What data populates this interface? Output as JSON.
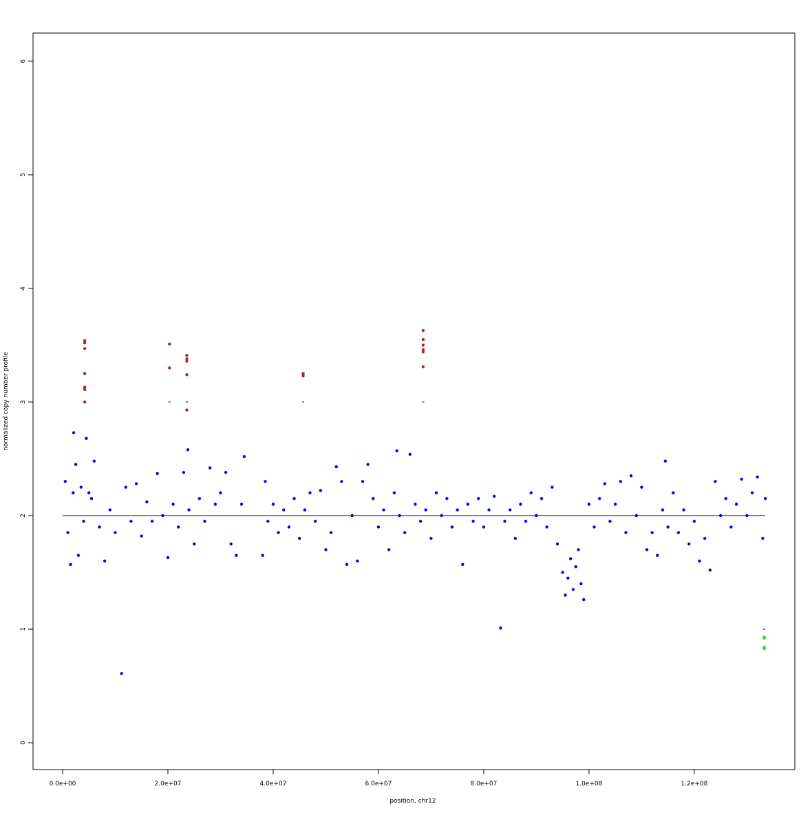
{
  "chart_data": {
    "type": "scatter",
    "x_label": "position, chr12",
    "y_label": "normalized copy number profile",
    "xlim": [
      -5620000.0,
      139100000.0
    ],
    "ylim": [
      -0.236,
      6.248
    ],
    "xticks": [
      {
        "value": 0,
        "label": "0.0e+00"
      },
      {
        "value": 20000000.0,
        "label": "2.0e+07"
      },
      {
        "value": 40000000.0,
        "label": "4.0e+07"
      },
      {
        "value": 60000000.0,
        "label": "6.0e+07"
      },
      {
        "value": 80000000.0,
        "label": "8.0e+07"
      },
      {
        "value": 100000000.0,
        "label": "1.0e+08"
      },
      {
        "value": 120000000.0,
        "label": "1.2e+08"
      }
    ],
    "yticks": [
      0,
      1,
      2,
      3,
      4,
      5,
      6
    ],
    "series": [
      {
        "color": "#0000ff",
        "x": [
          500000.0,
          1000000.0,
          1500000.0,
          2000000.0,
          2100000.0,
          2500000.0,
          3000000.0,
          3500000.0,
          4000000.0,
          4500000.0,
          5000000.0,
          5500000.0,
          6000000.0,
          7000000.0,
          8000000.0,
          9000000.0,
          10000000.0,
          11200000.0,
          12000000.0,
          13000000.0,
          14000000.0,
          15000000.0,
          16000000.0,
          17000000.0,
          18000000.0,
          19000000.0,
          20000000.0,
          21000000.0,
          22000000.0,
          23000000.0,
          23800000.0,
          24000000.0,
          25000000.0,
          26000000.0,
          27000000.0,
          28000000.0,
          29000000.0,
          30000000.0,
          31000000.0,
          32000000.0,
          33000000.0,
          34000000.0,
          34500000.0,
          38000000.0,
          38500000.0,
          39000000.0,
          40000000.0,
          41000000.0,
          42000000.0,
          43000000.0,
          44000000.0,
          45000000.0,
          46000000.0,
          47000000.0,
          48000000.0,
          49000000.0,
          50000000.0,
          51000000.0,
          52000000.0,
          53000000.0,
          54000000.0,
          55000000.0,
          56000000.0,
          57000000.0,
          58000000.0,
          59000000.0,
          60000000.0,
          61000000.0,
          62000000.0,
          63000000.0,
          63500000.0,
          64000000.0,
          65000000.0,
          66000000.0,
          67000000.0,
          68000000.0,
          69000000.0,
          70000000.0,
          71000000.0,
          72000000.0,
          73000000.0,
          74000000.0,
          75000000.0,
          76000000.0,
          77000000.0,
          78000000.0,
          79000000.0,
          80000000.0,
          81000000.0,
          82000000.0,
          83200000.0,
          84000000.0,
          85000000.0,
          86000000.0,
          87000000.0,
          88000000.0,
          89000000.0,
          90000000.0,
          91000000.0,
          92000000.0,
          93000000.0,
          94000000.0,
          95000000.0,
          95500000.0,
          96000000.0,
          96500000.0,
          97000000.0,
          97500000.0,
          98000000.0,
          98500000.0,
          99000000.0,
          100000000.0,
          101000000.0,
          102000000.0,
          103000000.0,
          104000000.0,
          105000000.0,
          106000000.0,
          107000000.0,
          108000000.0,
          109000000.0,
          110000000.0,
          111000000.0,
          112000000.0,
          113000000.0,
          114000000.0,
          114500000.0,
          115000000.0,
          116000000.0,
          117000000.0,
          118000000.0,
          119000000.0,
          120000000.0,
          121000000.0,
          122000000.0,
          123000000.0,
          124000000.0,
          125000000.0,
          126000000.0,
          127000000.0,
          128000000.0,
          129000000.0,
          130000000.0,
          131000000.0,
          132000000.0,
          133000000.0,
          133500000.0
        ],
        "values": [
          2.3,
          1.85,
          1.57,
          2.2,
          2.73,
          2.45,
          1.65,
          2.25,
          1.95,
          2.68,
          2.2,
          2.15,
          2.48,
          1.9,
          1.6,
          2.05,
          1.85,
          0.61,
          2.25,
          1.95,
          2.28,
          1.82,
          2.12,
          1.95,
          2.37,
          2.0,
          1.63,
          2.1,
          1.9,
          2.38,
          2.58,
          2.05,
          1.75,
          2.15,
          1.95,
          2.42,
          2.1,
          2.2,
          2.38,
          1.75,
          1.65,
          2.1,
          2.52,
          1.65,
          2.3,
          1.95,
          2.1,
          1.85,
          2.05,
          1.9,
          2.15,
          1.8,
          2.05,
          2.2,
          1.95,
          2.22,
          1.7,
          1.85,
          2.43,
          2.3,
          1.57,
          2.0,
          1.6,
          2.3,
          2.45,
          2.15,
          1.9,
          2.05,
          1.7,
          2.2,
          2.57,
          2.0,
          1.85,
          2.54,
          2.1,
          1.95,
          2.05,
          1.8,
          2.2,
          2.0,
          2.15,
          1.9,
          2.05,
          1.57,
          2.1,
          1.95,
          2.15,
          1.9,
          2.05,
          2.17,
          1.01,
          1.95,
          2.05,
          1.8,
          2.1,
          1.95,
          2.2,
          2.0,
          2.15,
          1.9,
          2.25,
          1.75,
          1.5,
          1.3,
          1.45,
          1.62,
          1.35,
          1.55,
          1.7,
          1.4,
          1.26,
          2.1,
          1.9,
          2.15,
          2.28,
          1.95,
          2.1,
          2.3,
          1.85,
          2.35,
          2.0,
          2.25,
          1.7,
          1.85,
          1.65,
          2.05,
          2.48,
          1.9,
          2.2,
          1.85,
          2.05,
          1.75,
          1.95,
          1.6,
          1.8,
          1.52,
          2.3,
          2.0,
          2.15,
          1.9,
          2.1,
          2.32,
          2.0,
          2.2,
          2.34,
          1.8,
          2.15
        ]
      },
      {
        "color": "#b22222",
        "x": [
          4200000.0,
          4200000.0,
          4200000.0,
          4200000.0,
          4200000.0,
          4200000.0,
          4200000.0,
          20300000.0,
          20300000.0,
          23600000.0,
          23600000.0,
          23600000.0,
          23600000.0,
          23600000.0,
          45700000.0,
          45700000.0,
          68500000.0,
          68500000.0,
          68500000.0,
          68500000.0,
          68500000.0,
          68500000.0
        ],
        "values": [
          3.54,
          3.52,
          3.47,
          3.25,
          3.13,
          3.11,
          3.0,
          3.51,
          3.3,
          3.41,
          3.38,
          3.36,
          3.24,
          2.93,
          3.25,
          3.23,
          3.63,
          3.55,
          3.5,
          3.46,
          3.44,
          3.31
        ]
      },
      {
        "color": "#22dd22",
        "x": [
          133300000.0,
          133300000.0,
          133300000.0,
          133300000.0
        ],
        "values": [
          0.93,
          0.92,
          0.84,
          0.83
        ]
      }
    ],
    "segments": [
      {
        "x": [
          0,
          133500000.0
        ],
        "y": 2
      },
      {
        "x": [
          4000000.0,
          4400000.0
        ],
        "y": 3
      },
      {
        "x": [
          20100000.0,
          20500000.0
        ],
        "y": 3
      },
      {
        "x": [
          23400000.0,
          23800000.0
        ],
        "y": 3
      },
      {
        "x": [
          45500000.0,
          45900000.0
        ],
        "y": 3
      },
      {
        "x": [
          68300000.0,
          68700000.0
        ],
        "y": 3
      },
      {
        "x": [
          133100000.0,
          133500000.0
        ],
        "y": 1
      }
    ]
  }
}
